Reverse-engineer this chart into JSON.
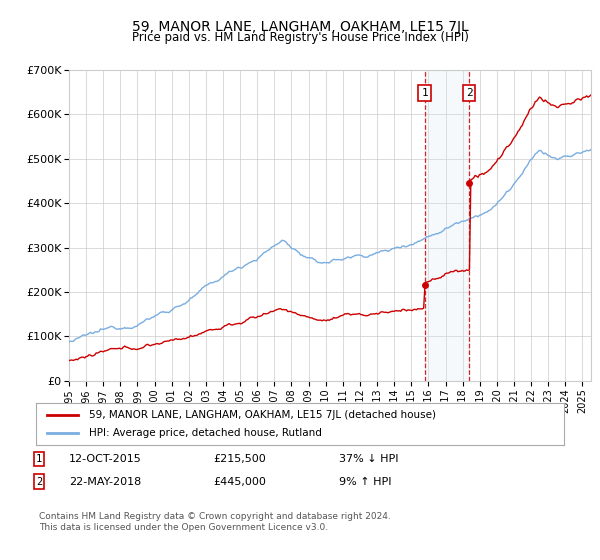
{
  "title": "59, MANOR LANE, LANGHAM, OAKHAM, LE15 7JL",
  "subtitle": "Price paid vs. HM Land Registry's House Price Index (HPI)",
  "ylim": [
    0,
    700000
  ],
  "yticks": [
    0,
    100000,
    200000,
    300000,
    400000,
    500000,
    600000,
    700000
  ],
  "ytick_labels": [
    "£0",
    "£100K",
    "£200K",
    "£300K",
    "£400K",
    "£500K",
    "£600K",
    "£700K"
  ],
  "xlim_start": 1995.0,
  "xlim_end": 2025.5,
  "sale1_x": 2015.78,
  "sale1_y": 215500,
  "sale2_x": 2018.38,
  "sale2_y": 445000,
  "sale1_date": "12-OCT-2015",
  "sale1_price": "£215,500",
  "sale1_hpi": "37% ↓ HPI",
  "sale2_date": "22-MAY-2018",
  "sale2_price": "£445,000",
  "sale2_hpi": "9% ↑ HPI",
  "legend1_label": "59, MANOR LANE, LANGHAM, OAKHAM, LE15 7JL (detached house)",
  "legend2_label": "HPI: Average price, detached house, Rutland",
  "red_color": "#cc0000",
  "blue_color": "#7aade0",
  "shade_color": "#d8eaf7",
  "footer": "Contains HM Land Registry data © Crown copyright and database right 2024.\nThis data is licensed under the Open Government Licence v3.0.",
  "background_color": "#ffffff",
  "grid_color": "#cccccc"
}
